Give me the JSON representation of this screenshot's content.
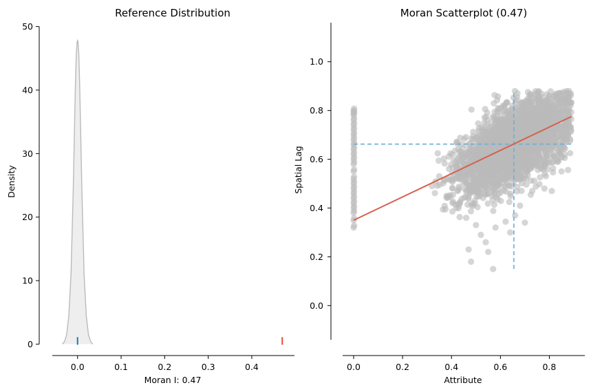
{
  "chart_data": [
    {
      "type": "area",
      "title": "Reference Distribution",
      "xlabel": "Moran I: 0.47",
      "ylabel": "Density",
      "xlim": [
        -0.058,
        0.498
      ],
      "ylim": [
        -0.5,
        50.5
      ],
      "xticks": [
        "0.0",
        "0.1",
        "0.2",
        "0.3",
        "0.4"
      ],
      "xtick_values": [
        0.0,
        0.1,
        0.2,
        0.3,
        0.4
      ],
      "yticks": [
        "0",
        "10",
        "20",
        "30",
        "40",
        "50"
      ],
      "ytick_values": [
        0,
        10,
        20,
        30,
        40,
        50
      ],
      "density": {
        "x": [
          -0.035,
          -0.03,
          -0.025,
          -0.02,
          -0.015,
          -0.01,
          -0.007,
          -0.005,
          -0.003,
          -0.001,
          0.0,
          0.001,
          0.003,
          0.005,
          0.007,
          0.01,
          0.015,
          0.02,
          0.025,
          0.03,
          0.035
        ],
        "y": [
          0.0,
          0.4,
          1.5,
          4.5,
          11.0,
          24.0,
          34.0,
          40.5,
          45.5,
          47.6,
          47.8,
          47.6,
          45.5,
          40.5,
          34.0,
          24.0,
          11.0,
          4.5,
          1.5,
          0.4,
          0.0
        ]
      },
      "reference_mark": 0.0,
      "observed_value": 0.47,
      "colors": {
        "fill": "#eeeeee",
        "line": "#bababa",
        "reference": "#1f77b4",
        "observed": "#e24a33"
      }
    },
    {
      "type": "scatter",
      "title": "Moran Scatterplot (0.47)",
      "xlabel": "Attribute",
      "ylabel": "Spatial Lag",
      "xlim": [
        -0.045,
        0.945
      ],
      "ylim": [
        -0.14,
        1.16
      ],
      "xticks": [
        "0.0",
        "0.2",
        "0.4",
        "0.6",
        "0.8"
      ],
      "xtick_values": [
        0.0,
        0.2,
        0.4,
        0.6,
        0.8
      ],
      "yticks": [
        "0.0",
        "0.2",
        "0.4",
        "0.6",
        "0.8",
        "1.0"
      ],
      "ytick_values": [
        0.0,
        0.2,
        0.4,
        0.6,
        0.8,
        1.0
      ],
      "fit_line": {
        "x": [
          0.0,
          0.89
        ],
        "y": [
          0.35,
          0.775
        ]
      },
      "mean_lines": {
        "x_mean": 0.655,
        "y_mean": 0.662,
        "vertical_y_range": [
          0.15,
          0.88
        ],
        "horizontal_x_range": [
          0.0,
          0.89
        ]
      },
      "zero_attribute_points": [
        0.32,
        0.35,
        0.38,
        0.4,
        0.42,
        0.44,
        0.46,
        0.48,
        0.5,
        0.52,
        0.55,
        0.58,
        0.6,
        0.62,
        0.64,
        0.66,
        0.68,
        0.7,
        0.72,
        0.74,
        0.76,
        0.78,
        0.79,
        0.8
      ],
      "outlier_points": [
        [
          0.47,
          0.23
        ],
        [
          0.48,
          0.18
        ],
        [
          0.52,
          0.29
        ],
        [
          0.54,
          0.26
        ],
        [
          0.55,
          0.22
        ],
        [
          0.57,
          0.15
        ],
        [
          0.58,
          0.32
        ],
        [
          0.64,
          0.3
        ],
        [
          0.66,
          0.37
        ],
        [
          0.7,
          0.34
        ],
        [
          0.73,
          0.47
        ],
        [
          0.88,
          0.88
        ],
        [
          0.84,
          0.87
        ],
        [
          0.8,
          0.86
        ],
        [
          0.32,
          0.49
        ],
        [
          0.35,
          0.53
        ],
        [
          0.38,
          0.45
        ],
        [
          0.42,
          0.4
        ],
        [
          0.68,
          0.41
        ],
        [
          0.85,
          0.55
        ],
        [
          0.86,
          0.65
        ],
        [
          0.78,
          0.48
        ],
        [
          0.81,
          0.47
        ],
        [
          0.46,
          0.36
        ],
        [
          0.5,
          0.33
        ]
      ],
      "cloud": {
        "x_mean": 0.66,
        "x_sd": 0.11,
        "x_range": [
          0.33,
          0.89
        ],
        "noise_sd": 0.075,
        "count": 3200
      },
      "colors": {
        "points": "#bababa",
        "fit": "#d6604d",
        "mean_lines": "#6baed6"
      }
    }
  ]
}
